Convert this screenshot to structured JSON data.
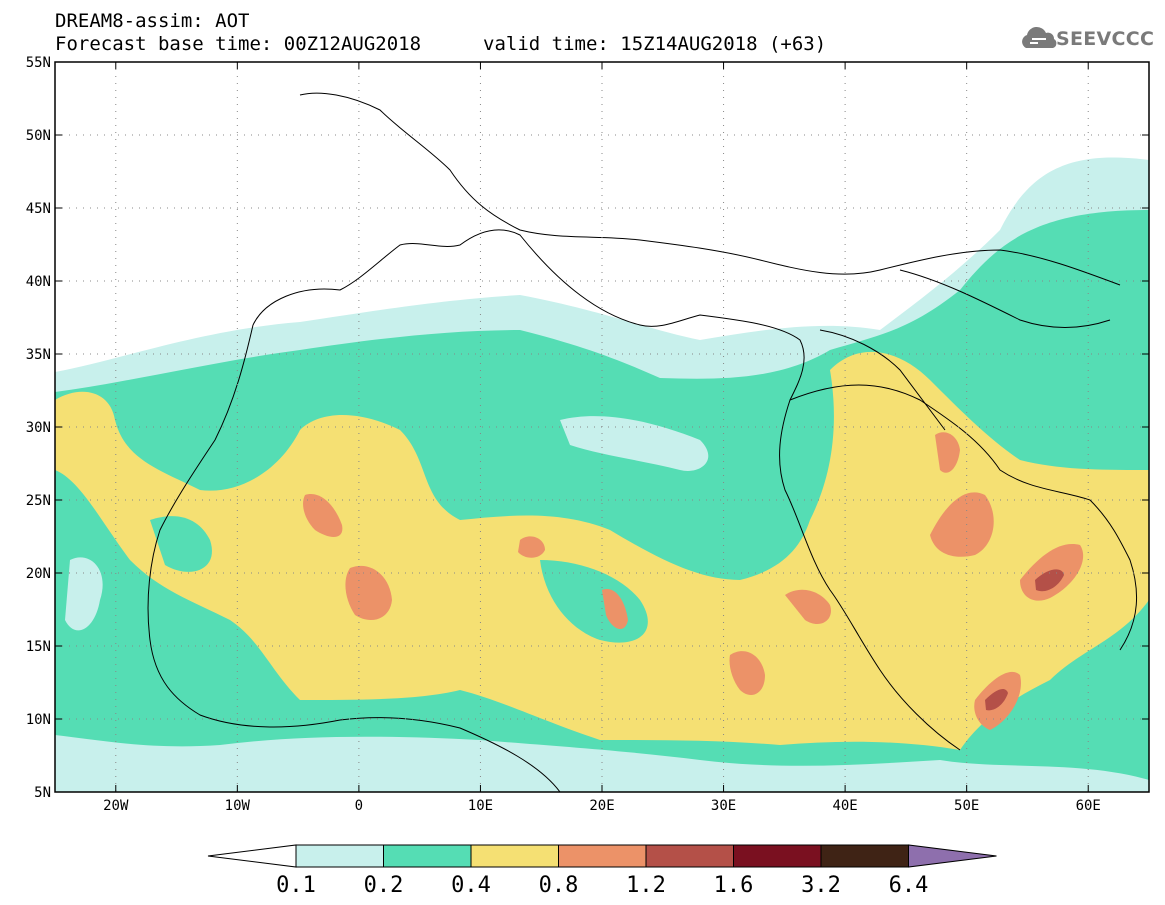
{
  "header": {
    "title_line1": "DREAM8-assim: AOT",
    "title_line2_base": "Forecast base time: 00Z12AUG2018",
    "title_line2_valid": "valid time: 15Z14AUG2018 (+63)",
    "logo_text": "SEEVCCC",
    "logo_icon": "cloud-logo-icon"
  },
  "map": {
    "lon_range": [
      -25,
      65
    ],
    "lat_range": [
      5,
      55
    ],
    "lat_labels": [
      "55N",
      "50N",
      "45N",
      "40N",
      "35N",
      "30N",
      "25N",
      "20N",
      "15N",
      "10N",
      "5N"
    ],
    "lat_values": [
      55,
      50,
      45,
      40,
      35,
      30,
      25,
      20,
      15,
      10,
      5
    ],
    "lon_labels": [
      "20W",
      "10W",
      "0",
      "10E",
      "20E",
      "30E",
      "40E",
      "50E",
      "60E"
    ],
    "lon_values": [
      -20,
      -10,
      0,
      10,
      20,
      30,
      40,
      50,
      60
    ],
    "gridlines": "dotted"
  },
  "colorbar": {
    "colors": [
      "#c8f0ec",
      "#55ddb4",
      "#f5e073",
      "#ec9268",
      "#b45048",
      "#7a1020",
      "#3f2315",
      "#8e6fad"
    ],
    "under_color": "#ffffff",
    "labels": [
      "0.1",
      "0.2",
      "0.4",
      "0.8",
      "1.2",
      "1.6",
      "3.2",
      "6.4"
    ]
  }
}
